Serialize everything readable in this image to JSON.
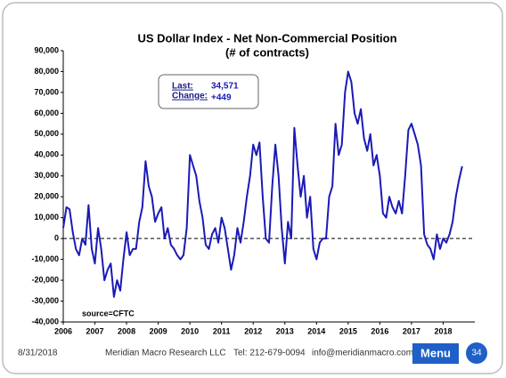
{
  "chart_data": {
    "type": "line",
    "title": "US Dollar Index - Net Non-Commercial Position",
    "subtitle": "(# of contracts)",
    "color": "#1a1ab8",
    "x": [
      2006.0,
      2006.1,
      2006.2,
      2006.3,
      2006.4,
      2006.5,
      2006.6,
      2006.7,
      2006.8,
      2006.9,
      2007.0,
      2007.1,
      2007.2,
      2007.3,
      2007.4,
      2007.5,
      2007.6,
      2007.7,
      2007.8,
      2007.9,
      2008.0,
      2008.1,
      2008.2,
      2008.3,
      2008.4,
      2008.5,
      2008.6,
      2008.7,
      2008.8,
      2008.9,
      2009.0,
      2009.1,
      2009.2,
      2009.3,
      2009.4,
      2009.5,
      2009.6,
      2009.7,
      2009.8,
      2009.9,
      2010.0,
      2010.1,
      2010.2,
      2010.3,
      2010.4,
      2010.5,
      2010.6,
      2010.7,
      2010.8,
      2010.9,
      2011.0,
      2011.1,
      2011.2,
      2011.3,
      2011.4,
      2011.5,
      2011.6,
      2011.7,
      2011.8,
      2011.9,
      2012.0,
      2012.1,
      2012.2,
      2012.3,
      2012.4,
      2012.5,
      2012.6,
      2012.7,
      2012.8,
      2012.9,
      2013.0,
      2013.1,
      2013.2,
      2013.3,
      2013.4,
      2013.5,
      2013.6,
      2013.7,
      2013.8,
      2013.9,
      2014.0,
      2014.1,
      2014.2,
      2014.3,
      2014.4,
      2014.5,
      2014.6,
      2014.7,
      2014.8,
      2014.9,
      2015.0,
      2015.1,
      2015.2,
      2015.3,
      2015.4,
      2015.5,
      2015.6,
      2015.7,
      2015.8,
      2015.9,
      2016.0,
      2016.1,
      2016.2,
      2016.3,
      2016.4,
      2016.5,
      2016.6,
      2016.7,
      2016.8,
      2016.9,
      2017.0,
      2017.1,
      2017.2,
      2017.3,
      2017.4,
      2017.5,
      2017.6,
      2017.7,
      2017.8,
      2017.9,
      2018.0,
      2018.1,
      2018.2,
      2018.3,
      2018.4,
      2018.5,
      2018.6
    ],
    "values": [
      5000,
      15000,
      14000,
      3000,
      -5000,
      -8000,
      0,
      -3000,
      16000,
      -5000,
      -12000,
      5000,
      -5000,
      -20000,
      -15000,
      -12000,
      -28000,
      -20000,
      -25000,
      -10000,
      3000,
      -8000,
      -5000,
      -5000,
      8000,
      15000,
      37000,
      25000,
      20000,
      8000,
      12000,
      15000,
      0,
      5000,
      -3000,
      -5000,
      -8000,
      -10000,
      -8000,
      5000,
      40000,
      35000,
      30000,
      18000,
      10000,
      -3000,
      -5000,
      2000,
      5000,
      -2000,
      10000,
      5000,
      -5000,
      -15000,
      -8000,
      5000,
      -2000,
      8000,
      20000,
      30000,
      45000,
      40000,
      46000,
      20000,
      0,
      -2000,
      25000,
      45000,
      30000,
      5000,
      -12000,
      8000,
      0,
      53000,
      35000,
      20000,
      30000,
      10000,
      20000,
      -5000,
      -10000,
      -2000,
      0,
      0,
      20000,
      25000,
      55000,
      40000,
      45000,
      70000,
      80000,
      75000,
      60000,
      55000,
      62000,
      48000,
      42000,
      50000,
      35000,
      40000,
      30000,
      12000,
      10000,
      20000,
      15000,
      12000,
      18000,
      12000,
      30000,
      52000,
      55000,
      50000,
      45000,
      35000,
      2000,
      -3000,
      -5000,
      -10000,
      2000,
      -5000,
      0,
      -2000,
      2000,
      8000,
      20000,
      28000,
      34571
    ],
    "xlim": [
      2006,
      2019
    ],
    "xticks": [
      2006,
      2007,
      2008,
      2009,
      2010,
      2011,
      2012,
      2013,
      2014,
      2015,
      2016,
      2017,
      2018
    ],
    "ylim": [
      -40000,
      90000
    ],
    "yticks": [
      {
        "value": -40000,
        "label": "-40,000"
      },
      {
        "value": -30000,
        "label": "-30,000"
      },
      {
        "value": -20000,
        "label": "-20,000"
      },
      {
        "value": -10000,
        "label": "-10,000"
      },
      0,
      {
        "value": 10000,
        "label": "10,000"
      },
      {
        "value": 20000,
        "label": "20,000"
      },
      {
        "value": 30000,
        "label": "30,000"
      },
      {
        "value": 40000,
        "label": "40,000"
      },
      {
        "value": 50000,
        "label": "50,000"
      },
      {
        "value": 60000,
        "label": "60,000"
      },
      {
        "value": 70000,
        "label": "70,000"
      },
      {
        "value": 80000,
        "label": "80,000"
      },
      {
        "value": 90000,
        "label": "90,000"
      }
    ],
    "reference_line": 0,
    "annotations": {
      "last_label": "Last:",
      "last_value": "34,571",
      "change_label": "Change:",
      "change_value": "+449",
      "source": "source=CFTC"
    }
  },
  "footer": {
    "date": "8/31/2018",
    "company": "Meridian Macro Research LLC",
    "phone": "Tel: 212-679-0094",
    "email": "info@meridianmacro.com",
    "menu": "Menu",
    "page": "34"
  }
}
